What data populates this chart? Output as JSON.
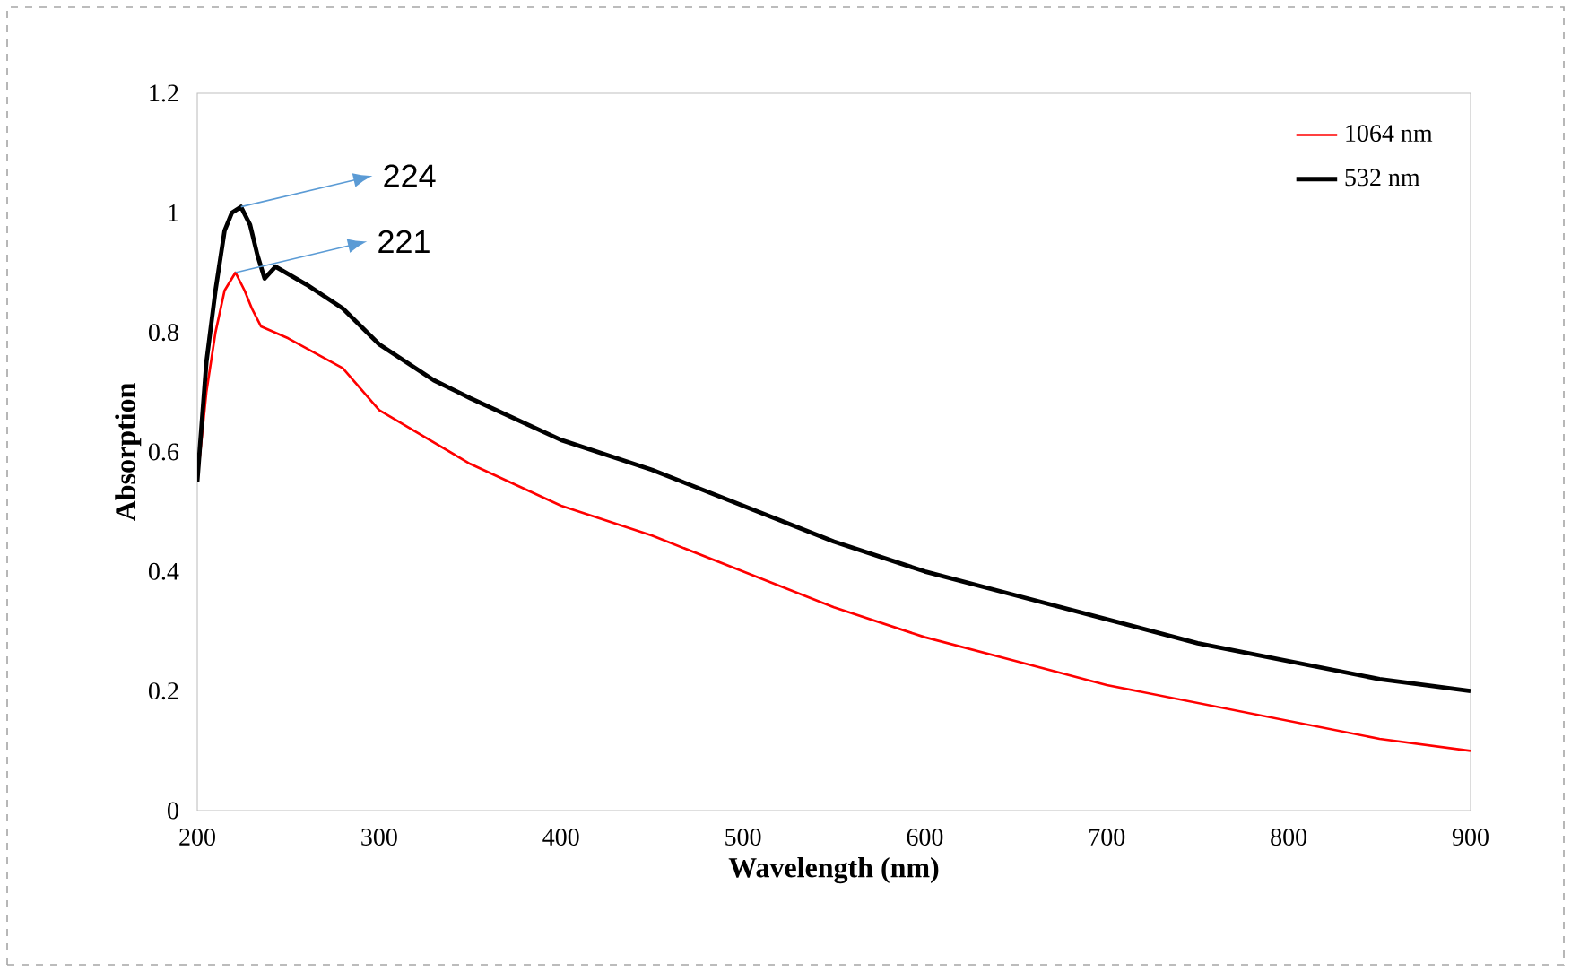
{
  "chart_data": {
    "type": "line",
    "xlabel": "Wavelength (nm)",
    "ylabel": "Absorption",
    "xlim": [
      200,
      900
    ],
    "ylim": [
      0,
      1.2
    ],
    "xticks": [
      200,
      300,
      400,
      500,
      600,
      700,
      800,
      900
    ],
    "yticks": [
      0,
      0.2,
      0.4,
      0.6,
      0.8,
      1,
      1.2
    ],
    "legend": "top right",
    "line_style": "solid",
    "marker": "none",
    "series": [
      {
        "name": "1064 nm",
        "color": "#ff0000",
        "x": [
          200,
          205,
          210,
          215,
          221,
          226,
          230,
          235,
          250,
          280,
          300,
          350,
          400,
          450,
          500,
          550,
          600,
          650,
          700,
          750,
          800,
          850,
          900
        ],
        "values": [
          0.55,
          0.7,
          0.8,
          0.87,
          0.9,
          0.87,
          0.84,
          0.81,
          0.79,
          0.74,
          0.67,
          0.58,
          0.51,
          0.46,
          0.4,
          0.34,
          0.29,
          0.25,
          0.21,
          0.18,
          0.15,
          0.12,
          0.1
        ]
      },
      {
        "name": "532 nm",
        "color": "#000000",
        "x": [
          200,
          205,
          210,
          215,
          219,
          224,
          229,
          233,
          237,
          243,
          260,
          280,
          300,
          330,
          350,
          400,
          450,
          500,
          550,
          600,
          650,
          700,
          750,
          800,
          850,
          900
        ],
        "values": [
          0.55,
          0.75,
          0.87,
          0.97,
          1.0,
          1.01,
          0.98,
          0.93,
          0.89,
          0.91,
          0.88,
          0.84,
          0.78,
          0.72,
          0.69,
          0.62,
          0.57,
          0.51,
          0.45,
          0.4,
          0.36,
          0.32,
          0.28,
          0.25,
          0.22,
          0.2
        ]
      }
    ],
    "annotations": [
      {
        "text": "224",
        "x": 224,
        "y": 1.01
      },
      {
        "text": "221",
        "x": 221,
        "y": 0.9
      }
    ]
  }
}
